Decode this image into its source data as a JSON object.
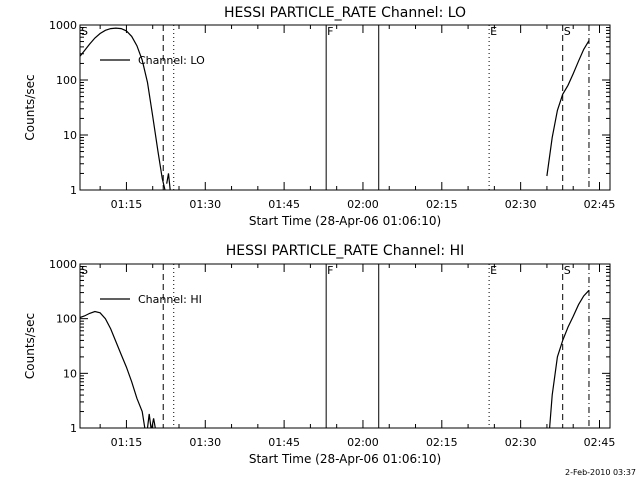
{
  "chart_data": [
    {
      "type": "line",
      "title": "HESSI PARTICLE_RATE Channel: LO",
      "xlabel": "Start Time (28-Apr-06 01:06:10)",
      "ylabel": "Counts/sec",
      "yscale": "log",
      "xlim": [
        "01:06:10",
        "02:47:00"
      ],
      "ylim": [
        1,
        1000
      ],
      "grid": false,
      "legend_position": "top-left",
      "x_ticks": [
        "01:15",
        "01:30",
        "01:45",
        "02:00",
        "02:15",
        "02:30",
        "02:45"
      ],
      "y_ticks": [
        "1",
        "10",
        "100",
        "1000"
      ],
      "series": [
        {
          "name": "Channel: LO",
          "segments": [
            [
              {
                "x": "01:06:10",
                "y": 270
              },
              {
                "x": "01:07:00",
                "y": 340
              },
              {
                "x": "01:08:00",
                "y": 450
              },
              {
                "x": "01:09:00",
                "y": 580
              },
              {
                "x": "01:10:00",
                "y": 700
              },
              {
                "x": "01:11:00",
                "y": 800
              },
              {
                "x": "01:12:00",
                "y": 860
              },
              {
                "x": "01:13:00",
                "y": 880
              },
              {
                "x": "01:14:00",
                "y": 860
              },
              {
                "x": "01:15:00",
                "y": 780
              },
              {
                "x": "01:16:00",
                "y": 620
              },
              {
                "x": "01:17:00",
                "y": 420
              },
              {
                "x": "01:18:00",
                "y": 230
              },
              {
                "x": "01:19:00",
                "y": 90
              },
              {
                "x": "01:20:00",
                "y": 22
              },
              {
                "x": "01:21:00",
                "y": 5
              },
              {
                "x": "01:21:50",
                "y": 1.6
              },
              {
                "x": "01:22:20",
                "y": 1.0
              }
            ],
            [
              {
                "x": "01:22:40",
                "y": 1.3
              },
              {
                "x": "01:23:00",
                "y": 2.0
              },
              {
                "x": "01:23:20",
                "y": 1.0
              }
            ],
            [
              {
                "x": "02:35:00",
                "y": 1.8
              },
              {
                "x": "02:36:00",
                "y": 9
              },
              {
                "x": "02:37:00",
                "y": 28
              },
              {
                "x": "02:38:00",
                "y": 55
              },
              {
                "x": "02:39:00",
                "y": 80
              },
              {
                "x": "02:40:00",
                "y": 130
              },
              {
                "x": "02:41:00",
                "y": 220
              },
              {
                "x": "02:42:00",
                "y": 360
              },
              {
                "x": "02:43:00",
                "y": 520
              }
            ]
          ]
        }
      ],
      "markers": [
        {
          "label": "S",
          "x": "01:06:10",
          "style": "solid"
        },
        {
          "label": "",
          "x": "01:22:00",
          "style": "dashed"
        },
        {
          "label": "",
          "x": "01:24:00",
          "style": "dotted"
        },
        {
          "label": "F",
          "x": "01:53:00",
          "style": "solid"
        },
        {
          "label": "",
          "x": "02:03:00",
          "style": "solid"
        },
        {
          "label": "E",
          "x": "02:24:00",
          "style": "dotted"
        },
        {
          "label": "S",
          "x": "02:38:00",
          "style": "dashed"
        },
        {
          "label": "",
          "x": "02:43:00",
          "style": "dashdot"
        }
      ]
    },
    {
      "type": "line",
      "title": "HESSI PARTICLE_RATE Channel: HI",
      "xlabel": "Start Time (28-Apr-06 01:06:10)",
      "ylabel": "Counts/sec",
      "yscale": "log",
      "xlim": [
        "01:06:10",
        "02:47:00"
      ],
      "ylim": [
        1,
        1000
      ],
      "grid": false,
      "legend_position": "top-left",
      "x_ticks": [
        "01:15",
        "01:30",
        "01:45",
        "02:00",
        "02:15",
        "02:30",
        "02:45"
      ],
      "y_ticks": [
        "1",
        "10",
        "100",
        "1000"
      ],
      "series": [
        {
          "name": "Channel: HI",
          "segments": [
            [
              {
                "x": "01:06:10",
                "y": 105
              },
              {
                "x": "01:07:00",
                "y": 112
              },
              {
                "x": "01:08:00",
                "y": 125
              },
              {
                "x": "01:09:00",
                "y": 135
              },
              {
                "x": "01:10:00",
                "y": 128
              },
              {
                "x": "01:11:00",
                "y": 100
              },
              {
                "x": "01:12:00",
                "y": 65
              },
              {
                "x": "01:13:00",
                "y": 38
              },
              {
                "x": "01:14:00",
                "y": 22
              },
              {
                "x": "01:15:00",
                "y": 13
              },
              {
                "x": "01:16:00",
                "y": 7
              },
              {
                "x": "01:17:00",
                "y": 3.5
              },
              {
                "x": "01:18:00",
                "y": 2.0
              },
              {
                "x": "01:18:30",
                "y": 1.0
              }
            ],
            [
              {
                "x": "01:19:00",
                "y": 1.0
              },
              {
                "x": "01:19:20",
                "y": 1.8
              },
              {
                "x": "01:19:40",
                "y": 1.0
              }
            ],
            [
              {
                "x": "01:19:50",
                "y": 1.0
              },
              {
                "x": "01:20:10",
                "y": 1.5
              },
              {
                "x": "01:20:30",
                "y": 1.0
              }
            ],
            [
              {
                "x": "02:35:30",
                "y": 1.0
              },
              {
                "x": "02:36:00",
                "y": 4
              },
              {
                "x": "02:37:00",
                "y": 20
              },
              {
                "x": "02:38:00",
                "y": 40
              },
              {
                "x": "02:39:00",
                "y": 70
              },
              {
                "x": "02:40:00",
                "y": 110
              },
              {
                "x": "02:41:00",
                "y": 180
              },
              {
                "x": "02:42:00",
                "y": 260
              },
              {
                "x": "02:43:00",
                "y": 330
              }
            ]
          ]
        }
      ],
      "markers": [
        {
          "label": "S",
          "x": "01:06:10",
          "style": "solid"
        },
        {
          "label": "",
          "x": "01:22:00",
          "style": "dashed"
        },
        {
          "label": "",
          "x": "01:24:00",
          "style": "dotted"
        },
        {
          "label": "F",
          "x": "01:53:00",
          "style": "solid"
        },
        {
          "label": "",
          "x": "02:03:00",
          "style": "solid"
        },
        {
          "label": "E",
          "x": "02:24:00",
          "style": "dotted"
        },
        {
          "label": "S",
          "x": "02:38:00",
          "style": "dashed"
        },
        {
          "label": "",
          "x": "02:43:00",
          "style": "dashdot"
        }
      ]
    }
  ],
  "footer": {
    "timestamp": "2-Feb-2010 03:37"
  }
}
